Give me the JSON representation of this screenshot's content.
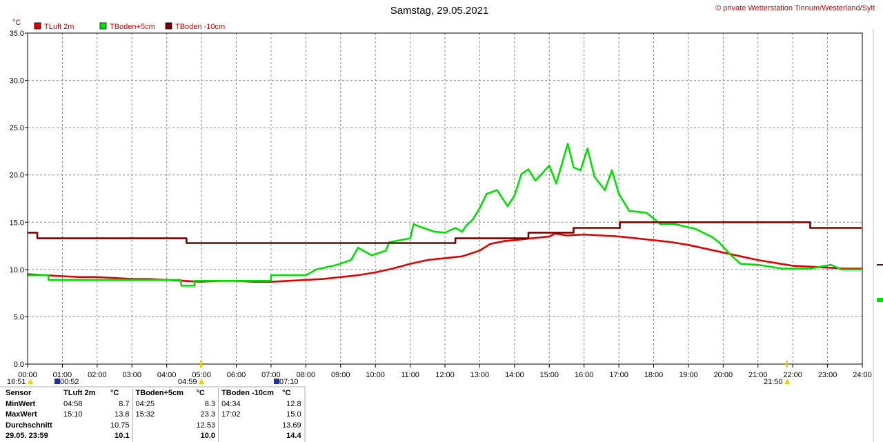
{
  "chart_data": {
    "type": "line",
    "title": "Samstag, 29.05.2021",
    "copyright": "© private Wetterstation Tinnum/Westerland/Sylt",
    "y_unit": "°C",
    "ylim": [
      0,
      35
    ],
    "y_ticks": [
      "0.0",
      "5.0",
      "10.0",
      "15.0",
      "20.0",
      "25.0",
      "30.0",
      "35.0"
    ],
    "x_ticks": [
      "00:00",
      "01:00",
      "02:00",
      "03:00",
      "04:00",
      "05:00",
      "06:00",
      "07:00",
      "08:00",
      "09:00",
      "10:00",
      "11:00",
      "12:00",
      "13:00",
      "14:00",
      "15:00",
      "16:00",
      "17:00",
      "18:00",
      "19:00",
      "20:00",
      "21:00",
      "22:00",
      "23:00",
      "24:00"
    ],
    "grid": true,
    "legend_position": "top-left",
    "series": [
      {
        "name": "TLuft 2m",
        "color": "#e00000",
        "points": [
          [
            0,
            9.5
          ],
          [
            0.5,
            9.4
          ],
          [
            1,
            9.3
          ],
          [
            1.5,
            9.2
          ],
          [
            2,
            9.2
          ],
          [
            2.5,
            9.1
          ],
          [
            3,
            9.0
          ],
          [
            3.5,
            9.0
          ],
          [
            4,
            8.9
          ],
          [
            4.5,
            8.8
          ],
          [
            4.97,
            8.7
          ],
          [
            5.5,
            8.8
          ],
          [
            6,
            8.8
          ],
          [
            6.5,
            8.7
          ],
          [
            7,
            8.7
          ],
          [
            7.5,
            8.8
          ],
          [
            8,
            8.9
          ],
          [
            8.5,
            9.0
          ],
          [
            9,
            9.2
          ],
          [
            9.5,
            9.4
          ],
          [
            10,
            9.7
          ],
          [
            10.5,
            10.1
          ],
          [
            11,
            10.6
          ],
          [
            11.5,
            11.0
          ],
          [
            12,
            11.2
          ],
          [
            12.5,
            11.4
          ],
          [
            13,
            12.0
          ],
          [
            13.3,
            12.7
          ],
          [
            13.7,
            13.0
          ],
          [
            14,
            13.1
          ],
          [
            14.5,
            13.3
          ],
          [
            15,
            13.5
          ],
          [
            15.17,
            13.8
          ],
          [
            15.5,
            13.6
          ],
          [
            16,
            13.7
          ],
          [
            16.5,
            13.6
          ],
          [
            17,
            13.5
          ],
          [
            17.5,
            13.3
          ],
          [
            18,
            13.1
          ],
          [
            18.5,
            12.9
          ],
          [
            19,
            12.6
          ],
          [
            19.5,
            12.2
          ],
          [
            20,
            11.8
          ],
          [
            20.5,
            11.4
          ],
          [
            21,
            11.0
          ],
          [
            21.5,
            10.7
          ],
          [
            22,
            10.4
          ],
          [
            22.5,
            10.3
          ],
          [
            23,
            10.2
          ],
          [
            23.5,
            10.1
          ],
          [
            23.98,
            10.1
          ]
        ]
      },
      {
        "name": "TBoden+5cm",
        "color": "#00e000",
        "points": [
          [
            0,
            9.4
          ],
          [
            0.6,
            9.4
          ],
          [
            0.6,
            8.9
          ],
          [
            4.4,
            8.9
          ],
          [
            4.42,
            8.3
          ],
          [
            4.8,
            8.3
          ],
          [
            4.8,
            8.8
          ],
          [
            7,
            8.8
          ],
          [
            7,
            9.4
          ],
          [
            8,
            9.4
          ],
          [
            8.3,
            10.0
          ],
          [
            8.9,
            10.5
          ],
          [
            9.3,
            11.0
          ],
          [
            9.5,
            12.3
          ],
          [
            9.9,
            11.5
          ],
          [
            10.3,
            12.0
          ],
          [
            10.4,
            12.9
          ],
          [
            11,
            13.3
          ],
          [
            11.1,
            14.8
          ],
          [
            11.3,
            14.5
          ],
          [
            11.7,
            14.0
          ],
          [
            12,
            13.9
          ],
          [
            12.3,
            14.4
          ],
          [
            12.5,
            14.0
          ],
          [
            12.6,
            14.6
          ],
          [
            12.8,
            15.3
          ],
          [
            13,
            16.5
          ],
          [
            13.2,
            18.0
          ],
          [
            13.5,
            18.4
          ],
          [
            13.8,
            16.7
          ],
          [
            14,
            17.8
          ],
          [
            14.2,
            20.1
          ],
          [
            14.4,
            20.6
          ],
          [
            14.6,
            19.4
          ],
          [
            14.8,
            20.2
          ],
          [
            15,
            21.0
          ],
          [
            15.2,
            19.1
          ],
          [
            15.53,
            23.3
          ],
          [
            15.7,
            20.8
          ],
          [
            15.9,
            20.5
          ],
          [
            16.1,
            22.8
          ],
          [
            16.3,
            19.8
          ],
          [
            16.6,
            18.4
          ],
          [
            16.8,
            20.5
          ],
          [
            17,
            18.0
          ],
          [
            17.3,
            16.2
          ],
          [
            17.8,
            16.0
          ],
          [
            18.2,
            14.8
          ],
          [
            18.6,
            14.8
          ],
          [
            19.2,
            14.3
          ],
          [
            19.7,
            13.4
          ],
          [
            19.9,
            12.8
          ],
          [
            20.2,
            11.6
          ],
          [
            20.5,
            10.6
          ],
          [
            21,
            10.5
          ],
          [
            21.7,
            10.1
          ],
          [
            22.5,
            10.1
          ],
          [
            23.1,
            10.5
          ],
          [
            23.4,
            10.0
          ],
          [
            23.98,
            10.0
          ]
        ]
      },
      {
        "name": "TBoden -10cm",
        "color": "#7a0000",
        "points": [
          [
            0,
            13.9
          ],
          [
            0.28,
            13.9
          ],
          [
            0.28,
            13.3
          ],
          [
            4.57,
            13.3
          ],
          [
            4.57,
            12.8
          ],
          [
            12.3,
            12.8
          ],
          [
            12.3,
            13.3
          ],
          [
            14.4,
            13.3
          ],
          [
            14.4,
            13.9
          ],
          [
            15.7,
            13.9
          ],
          [
            15.7,
            14.4
          ],
          [
            17.03,
            14.4
          ],
          [
            17.03,
            15.0
          ],
          [
            22.5,
            15.0
          ],
          [
            22.5,
            14.4
          ],
          [
            23.98,
            14.4
          ]
        ]
      }
    ]
  },
  "markers": {
    "left_time": "16:51",
    "t1": "00:52",
    "t2": "04:59",
    "t3": "07:10",
    "t4": "21:50"
  },
  "table": {
    "headers": [
      "Sensor",
      "TLuft 2m",
      "°C",
      "TBoden+5cm",
      "°C",
      "TBoden -10cm",
      "°C"
    ],
    "rows": [
      {
        "label": "MinWert",
        "c1t": "04:58",
        "c1v": "8.7",
        "c2t": "04:25",
        "c2v": "8.3",
        "c3t": "04:34",
        "c3v": "12.8"
      },
      {
        "label": "MaxWert",
        "c1t": "15:10",
        "c1v": "13.8",
        "c2t": "15:32",
        "c2v": "23.3",
        "c3t": "17:02",
        "c3v": "15.0"
      },
      {
        "label": "Durchschnitt",
        "c1t": "",
        "c1v": "10.75",
        "c2t": "",
        "c2v": "12.53",
        "c3t": "",
        "c3v": "13.69"
      },
      {
        "label": "29.05. 23:59",
        "c1t": "",
        "c1v": "10.1",
        "c2t": "",
        "c2v": "10.0",
        "c3t": "",
        "c3v": "14.4"
      }
    ]
  }
}
